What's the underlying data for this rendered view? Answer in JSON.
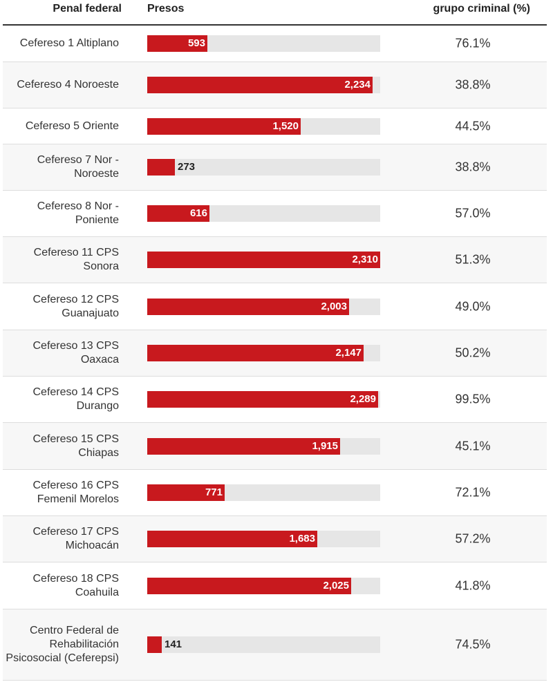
{
  "header": {
    "col_penal": "Penal federal",
    "col_presos": "Presos",
    "col_grupo": "grupo criminal (%)"
  },
  "colors": {
    "bar": "#c8191e",
    "track": "#e6e6e6"
  },
  "chart_data": {
    "type": "bar",
    "orientation": "horizontal",
    "xlim": [
      0,
      2310
    ],
    "categories": [
      "Cefereso 1 Altiplano",
      "Cefereso 4 Noroeste",
      "Cefereso 5 Oriente",
      "Cefereso 7 Nor - Noroeste",
      "Cefereso 8 Nor - Poniente",
      "Cefereso 11 CPS Sonora",
      "Cefereso 12 CPS Guanajuato",
      "Cefereso 13 CPS Oaxaca",
      "Cefereso 14 CPS Durango",
      "Cefereso 15 CPS Chiapas",
      "Cefereso 16 CPS Femenil Morelos",
      "Cefereso 17 CPS Michoacán",
      "Cefereso 18 CPS Coahuila",
      "Centro Federal de Rehabilitación Psicosocial (Ceferepsi)"
    ],
    "series": [
      {
        "name": "Presos",
        "values": [
          593,
          2234,
          1520,
          273,
          616,
          2310,
          2003,
          2147,
          2289,
          1915,
          771,
          1683,
          2025,
          141
        ],
        "labels": [
          "593",
          "2,234",
          "1,520",
          "273",
          "616",
          "2,310",
          "2,003",
          "2,147",
          "2,289",
          "1,915",
          "771",
          "1,683",
          "2,025",
          "141"
        ]
      },
      {
        "name": "grupo criminal (%)",
        "values": [
          76.1,
          38.8,
          44.5,
          38.8,
          57.0,
          51.3,
          49.0,
          50.2,
          99.5,
          45.1,
          72.1,
          57.2,
          41.8,
          74.5
        ],
        "labels": [
          "76.1%",
          "38.8%",
          "44.5%",
          "38.8%",
          "57.0%",
          "51.3%",
          "49.0%",
          "50.2%",
          "99.5%",
          "45.1%",
          "72.1%",
          "57.2%",
          "41.8%",
          "74.5%"
        ]
      }
    ]
  }
}
